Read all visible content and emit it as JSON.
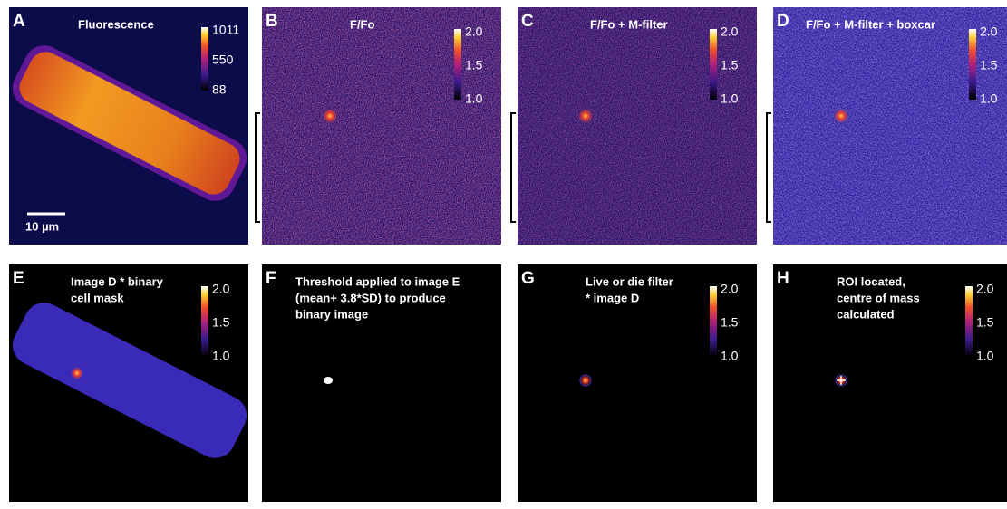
{
  "panels": [
    {
      "letter": "A",
      "title": [
        "Fluorescence"
      ],
      "colorbar": [
        "1011",
        "550",
        "88"
      ],
      "scale_bar": "10 µm"
    },
    {
      "letter": "B",
      "title": [
        "F/Fo"
      ],
      "colorbar": [
        "2.0",
        "1.5",
        "1.0"
      ]
    },
    {
      "letter": "C",
      "title": [
        "F/Fo + M-filter"
      ],
      "colorbar": [
        "2.0",
        "1.5",
        "1.0"
      ]
    },
    {
      "letter": "D",
      "title": [
        "F/Fo + M-filter + boxcar"
      ],
      "colorbar": [
        "2.0",
        "1.5",
        "1.0"
      ]
    },
    {
      "letter": "E",
      "title": [
        "Image D * binary",
        "cell mask"
      ],
      "colorbar": [
        "2.0",
        "1.5",
        "1.0"
      ]
    },
    {
      "letter": "F",
      "title": [
        "Threshold  applied to image E",
        "(mean+ 3.8*SD) to produce",
        "binary image"
      ]
    },
    {
      "letter": "G",
      "title": [
        "Live or die filter",
        "* image D"
      ],
      "colorbar": [
        "2.0",
        "1.5",
        "1.0"
      ]
    },
    {
      "letter": "H",
      "title": [
        "ROI located,",
        "centre of mass",
        "calculated"
      ],
      "colorbar": [
        "2.0",
        "1.5",
        "1.0"
      ]
    }
  ]
}
